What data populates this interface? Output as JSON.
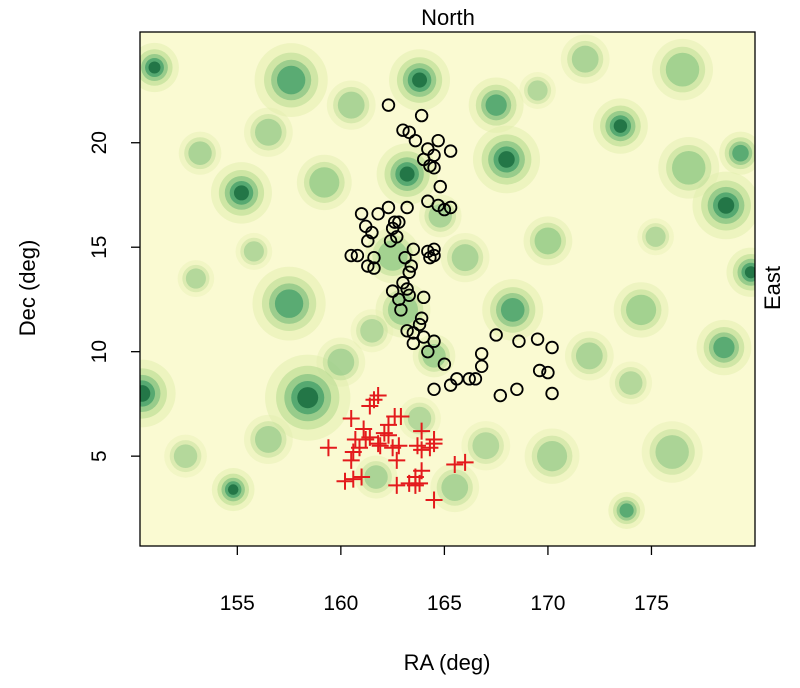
{
  "chart_data": {
    "type": "scatter",
    "title": "North",
    "xlabel": "RA (deg)",
    "ylabel": "Dec (deg)",
    "right_label": "East",
    "xlim": [
      150.3,
      180.0
    ],
    "ylim": [
      0.7,
      25.3
    ],
    "xticks": [
      155,
      160,
      165,
      170,
      175
    ],
    "yticks": [
      5,
      10,
      15,
      20
    ],
    "grid": false,
    "background": "smoothed density contours (green, darker = denser)",
    "colors": {
      "background_low": "#fafad2",
      "contour_1": "#e2eeaf",
      "contour_2": "#b9dc93",
      "contour_3": "#82c180",
      "contour_4": "#46a06a",
      "contour_5": "#1e7043",
      "circles": "#000000",
      "crosses": "#e31a1c"
    },
    "density_blobs": [
      [
        155.2,
        17.6,
        1.0,
        1.0
      ],
      [
        150.4,
        8.0,
        1.1,
        1.0
      ],
      [
        151.0,
        23.6,
        0.8,
        1.0
      ],
      [
        154.8,
        3.4,
        0.7,
        0.9
      ],
      [
        157.5,
        12.3,
        1.2,
        0.8
      ],
      [
        158.4,
        7.8,
        1.4,
        0.9
      ],
      [
        157.6,
        23.0,
        1.2,
        0.8
      ],
      [
        159.2,
        18.1,
        0.9,
        0.7
      ],
      [
        156.5,
        20.5,
        0.8,
        0.6
      ],
      [
        153.2,
        19.5,
        0.7,
        0.6
      ],
      [
        152.5,
        5.0,
        0.7,
        0.5
      ],
      [
        163.8,
        23.0,
        1.0,
        0.9
      ],
      [
        163.2,
        18.5,
        1.0,
        0.9
      ],
      [
        163.0,
        12.0,
        0.9,
        0.7
      ],
      [
        164.5,
        9.8,
        0.7,
        0.7
      ],
      [
        165.5,
        3.5,
        0.8,
        0.6
      ],
      [
        162.5,
        14.6,
        0.9,
        0.7
      ],
      [
        168.0,
        19.2,
        1.1,
        0.9
      ],
      [
        167.5,
        21.8,
        0.9,
        0.8
      ],
      [
        168.3,
        12.0,
        1.0,
        0.8
      ],
      [
        170.0,
        15.3,
        0.8,
        0.7
      ],
      [
        173.5,
        20.8,
        0.9,
        0.9
      ],
      [
        173.8,
        2.4,
        0.6,
        0.8
      ],
      [
        174.5,
        12.0,
        0.9,
        0.7
      ],
      [
        176.8,
        18.8,
        1.0,
        0.7
      ],
      [
        178.6,
        17.0,
        1.1,
        1.0
      ],
      [
        179.8,
        13.8,
        0.8,
        0.9
      ],
      [
        178.5,
        10.2,
        0.9,
        0.8
      ],
      [
        179.3,
        19.5,
        0.7,
        0.8
      ],
      [
        176.5,
        23.5,
        1.0,
        0.7
      ],
      [
        171.8,
        24.0,
        0.8,
        0.6
      ],
      [
        172.0,
        9.8,
        0.8,
        0.6
      ],
      [
        170.2,
        5.0,
        0.9,
        0.6
      ],
      [
        167.0,
        5.5,
        0.8,
        0.5
      ],
      [
        176.0,
        5.2,
        1.0,
        0.6
      ],
      [
        166.0,
        14.5,
        0.8,
        0.6
      ],
      [
        160.0,
        9.5,
        0.8,
        0.6
      ],
      [
        155.8,
        14.8,
        0.6,
        0.5
      ],
      [
        156.5,
        5.8,
        0.8,
        0.6
      ],
      [
        161.7,
        4.0,
        0.7,
        0.6
      ],
      [
        169.5,
        22.5,
        0.6,
        0.5
      ],
      [
        160.5,
        21.8,
        0.8,
        0.6
      ],
      [
        153.0,
        13.5,
        0.6,
        0.5
      ],
      [
        175.2,
        15.5,
        0.6,
        0.5
      ],
      [
        164.8,
        16.5,
        0.7,
        0.6
      ],
      [
        174.0,
        8.5,
        0.7,
        0.5
      ],
      [
        163.8,
        6.8,
        0.7,
        0.5
      ],
      [
        161.5,
        11.0,
        0.7,
        0.5
      ]
    ],
    "series": [
      {
        "marker": "circle",
        "color": "#000000",
        "points": [
          [
            162.3,
            21.8
          ],
          [
            163.0,
            20.6
          ],
          [
            163.3,
            20.5
          ],
          [
            163.6,
            20.1
          ],
          [
            163.9,
            21.3
          ],
          [
            164.2,
            19.7
          ],
          [
            164.5,
            19.4
          ],
          [
            164.3,
            18.9
          ],
          [
            164.5,
            18.8
          ],
          [
            164.0,
            19.2
          ],
          [
            164.7,
            20.1
          ],
          [
            165.3,
            19.6
          ],
          [
            164.8,
            17.9
          ],
          [
            164.2,
            17.2
          ],
          [
            164.7,
            17.0
          ],
          [
            165.0,
            16.8
          ],
          [
            165.3,
            16.9
          ],
          [
            163.2,
            16.9
          ],
          [
            161.0,
            16.6
          ],
          [
            161.8,
            16.6
          ],
          [
            162.3,
            16.9
          ],
          [
            162.8,
            16.2
          ],
          [
            162.5,
            15.9
          ],
          [
            162.7,
            15.5
          ],
          [
            162.4,
            15.3
          ],
          [
            162.6,
            16.2
          ],
          [
            161.2,
            16.0
          ],
          [
            161.5,
            15.7
          ],
          [
            161.3,
            15.3
          ],
          [
            160.5,
            14.6
          ],
          [
            160.8,
            14.6
          ],
          [
            161.6,
            14.5
          ],
          [
            161.3,
            14.1
          ],
          [
            161.6,
            14.0
          ],
          [
            163.1,
            14.5
          ],
          [
            163.5,
            14.9
          ],
          [
            164.2,
            14.8
          ],
          [
            164.5,
            14.9
          ],
          [
            164.3,
            14.5
          ],
          [
            164.5,
            14.6
          ],
          [
            163.4,
            14.1
          ],
          [
            163.3,
            13.8
          ],
          [
            163.0,
            13.3
          ],
          [
            163.2,
            13.0
          ],
          [
            162.5,
            12.9
          ],
          [
            162.8,
            12.5
          ],
          [
            163.3,
            12.7
          ],
          [
            164.0,
            12.6
          ],
          [
            162.9,
            12.0
          ],
          [
            163.9,
            11.6
          ],
          [
            163.8,
            11.3
          ],
          [
            163.5,
            10.9
          ],
          [
            163.2,
            11.0
          ],
          [
            164.0,
            10.7
          ],
          [
            163.5,
            10.4
          ],
          [
            164.5,
            10.5
          ],
          [
            164.2,
            10.0
          ],
          [
            165.0,
            9.4
          ],
          [
            164.5,
            8.2
          ],
          [
            165.3,
            8.4
          ],
          [
            165.6,
            8.7
          ],
          [
            166.2,
            8.7
          ],
          [
            166.5,
            8.7
          ],
          [
            166.8,
            9.3
          ],
          [
            166.8,
            9.9
          ],
          [
            167.5,
            10.8
          ],
          [
            168.6,
            10.5
          ],
          [
            169.5,
            10.6
          ],
          [
            170.2,
            10.2
          ],
          [
            169.6,
            9.1
          ],
          [
            170.0,
            9.0
          ],
          [
            168.5,
            8.2
          ],
          [
            170.2,
            8.0
          ],
          [
            167.7,
            7.9
          ]
        ]
      },
      {
        "marker": "cross",
        "color": "#e31a1c",
        "points": [
          [
            161.6,
            7.7
          ],
          [
            161.8,
            7.9
          ],
          [
            161.4,
            7.4
          ],
          [
            162.6,
            6.9
          ],
          [
            162.9,
            6.9
          ],
          [
            160.5,
            6.8
          ],
          [
            162.3,
            6.5
          ],
          [
            161.1,
            6.3
          ],
          [
            161.2,
            5.8
          ],
          [
            161.8,
            5.6
          ],
          [
            160.9,
            5.4
          ],
          [
            160.6,
            5.2
          ],
          [
            160.7,
            5.8
          ],
          [
            161.4,
            5.9
          ],
          [
            161.9,
            5.5
          ],
          [
            162.1,
            6.1
          ],
          [
            162.3,
            6.0
          ],
          [
            162.5,
            5.4
          ],
          [
            162.8,
            5.5
          ],
          [
            159.4,
            5.4
          ],
          [
            160.5,
            4.8
          ],
          [
            161.0,
            4.0
          ],
          [
            160.6,
            3.9
          ],
          [
            160.2,
            3.8
          ],
          [
            162.7,
            4.8
          ],
          [
            163.3,
            3.7
          ],
          [
            162.7,
            3.6
          ],
          [
            163.6,
            4.0
          ],
          [
            163.8,
            3.7
          ],
          [
            163.6,
            3.6
          ],
          [
            163.9,
            4.3
          ],
          [
            163.9,
            5.3
          ],
          [
            164.3,
            5.4
          ],
          [
            164.5,
            5.8
          ],
          [
            164.5,
            5.6
          ],
          [
            163.9,
            6.2
          ],
          [
            163.7,
            5.5
          ],
          [
            165.5,
            4.6
          ],
          [
            166.0,
            4.7
          ],
          [
            164.5,
            2.9
          ]
        ]
      }
    ]
  }
}
